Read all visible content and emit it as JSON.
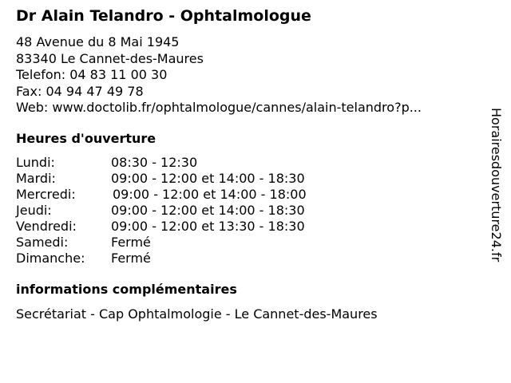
{
  "title": "Dr Alain Telandro - Ophtalmologue",
  "address": {
    "street": "48 Avenue du 8 Mai 1945",
    "city": "83340 Le Cannet-des-Maures",
    "phone": "Telefon: 04 83 11 00 30",
    "fax": "Fax: 04 94 47 49 78",
    "web": "Web: www.doctolib.fr/ophtalmologue/cannes/alain-telandro?p..."
  },
  "hours_heading": "Heures d'ouverture",
  "hours": [
    {
      "day": "Lundi:",
      "time": "08:30 - 12:30"
    },
    {
      "day": "Mardi:",
      "time": "09:00 - 12:00 et 14:00 - 18:30"
    },
    {
      "day": "Mercredi:",
      "time": "09:00 - 12:00 et 14:00 - 18:00"
    },
    {
      "day": "Jeudi:",
      "time": "09:00 - 12:00 et 14:00 - 18:30"
    },
    {
      "day": "Vendredi:",
      "time": "09:00 - 12:00 et 13:30 - 18:30"
    },
    {
      "day": "Samedi:",
      "time": "Fermé"
    },
    {
      "day": "Dimanche:",
      "time": "Fermé"
    }
  ],
  "info_heading": "informations complémentaires",
  "info_text": "Secrétariat - Cap Ophtalmologie - Le Cannet-des-Maures",
  "watermark": "Horairesdouverture24.fr"
}
